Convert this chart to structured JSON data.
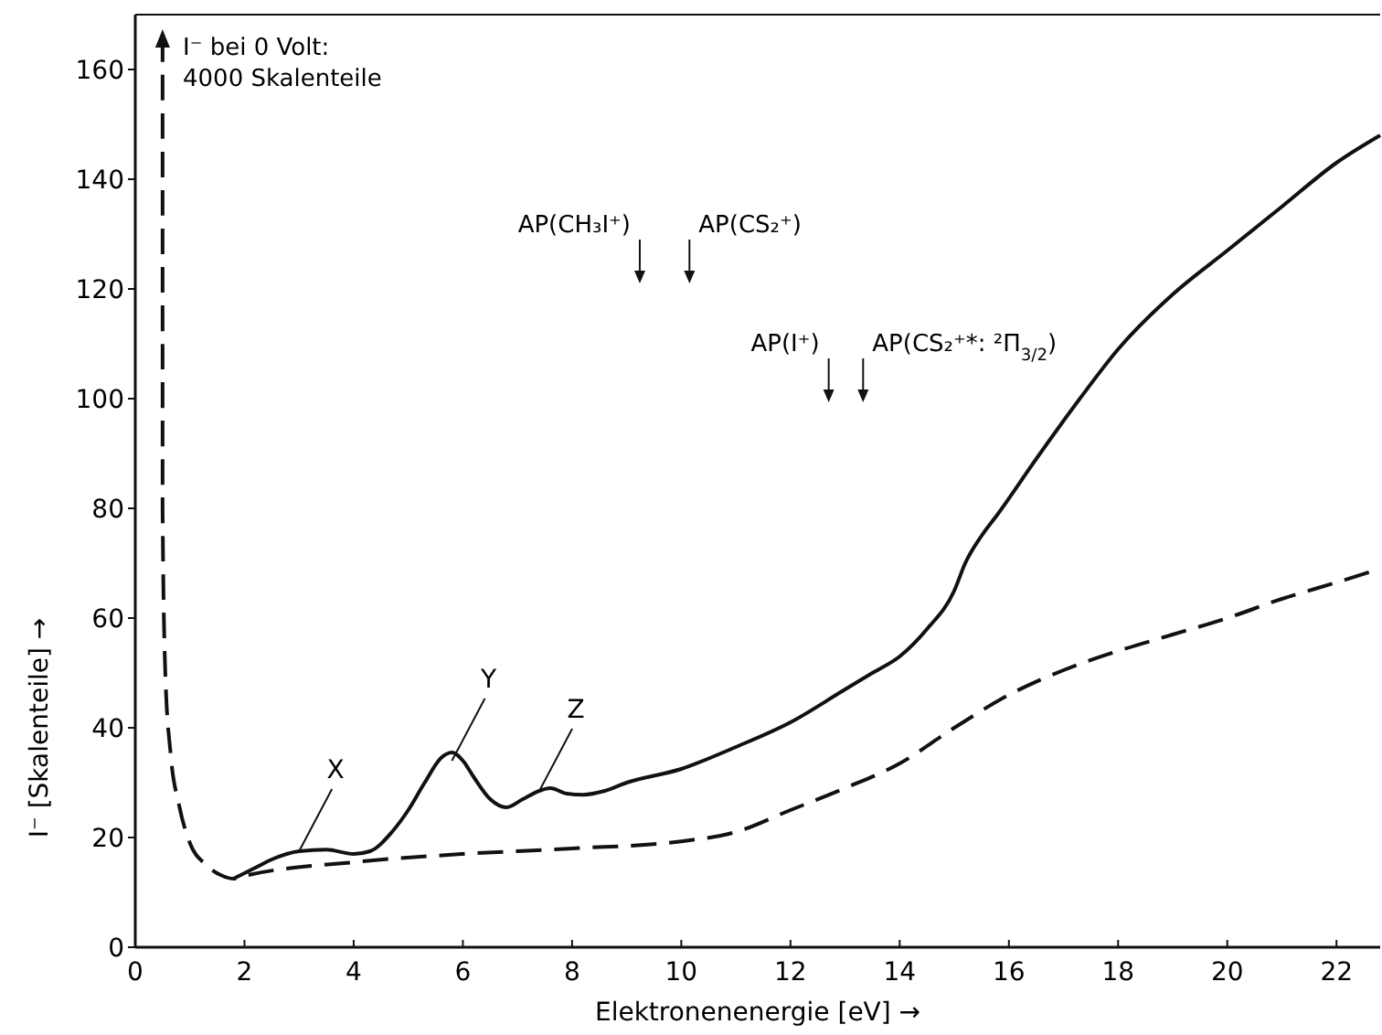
{
  "chart_data": {
    "type": "line",
    "xlabel": "Elektronenenergie [eV] →",
    "ylabel": "I⁻ [Skalenteile] →",
    "xlim": [
      0,
      22.8
    ],
    "ylim": [
      0,
      170
    ],
    "xticks": [
      0,
      2,
      4,
      6,
      8,
      10,
      12,
      14,
      16,
      18,
      20,
      22
    ],
    "yticks": [
      0,
      20,
      40,
      60,
      80,
      100,
      120,
      140,
      160
    ],
    "grid": false,
    "marker": "none",
    "ref_lines": [
      {
        "axis": "x",
        "value": 9.24,
        "label": "AP(CH₃I⁺)"
      },
      {
        "axis": "x",
        "value": 10.15,
        "label": "AP(CS₂⁺)"
      },
      {
        "axis": "x",
        "value": 12.7,
        "label": "AP(I⁺)"
      },
      {
        "axis": "x",
        "value": 13.33,
        "label": "AP(CS₂⁺*: ²Π$_{3/2}$)"
      }
    ],
    "series": [
      {
        "color": "#111111",
        "line_style": "solid",
        "x": [
          1.8,
          2.2,
          2.5,
          3,
          3.5,
          4,
          4.3,
          4.7,
          5,
          5.3,
          5.6,
          5.8,
          6,
          6.2,
          6.5,
          6.8,
          7.1,
          7.4,
          7.6,
          7.9,
          8.2,
          8.6,
          9,
          10,
          11,
          12,
          13,
          13.5,
          14,
          14.5,
          15,
          15.2,
          15.5,
          15.8,
          16.5,
          17.3,
          18,
          19,
          20,
          21,
          22,
          22.8
        ],
        "values": [
          12.5,
          14.5,
          16,
          17.5,
          17.8,
          17,
          17.5,
          21,
          25,
          30,
          34.5,
          35.5,
          34,
          31,
          27,
          25.5,
          27,
          28.5,
          29,
          28,
          27.8,
          28.5,
          30,
          32.5,
          36.5,
          41,
          47,
          50,
          53,
          58,
          65,
          70,
          75,
          79,
          89,
          100,
          109,
          119,
          127,
          135,
          143,
          148
        ]
      },
      {
        "color": "#111111",
        "line_style": "dashed",
        "x": [
          0.5,
          0.5,
          0.55,
          0.65,
          0.8,
          1.0,
          1.3,
          1.6,
          1.8,
          2,
          4,
          6,
          8,
          10,
          11,
          12,
          13,
          14,
          15,
          16,
          17,
          18,
          19,
          20,
          21,
          22,
          22.8
        ],
        "values": [
          166,
          80,
          50,
          35,
          26,
          19,
          15,
          13,
          12.5,
          13,
          15.5,
          17,
          18,
          19.3,
          21,
          25,
          29,
          33.5,
          40,
          46,
          50.5,
          54,
          57,
          60,
          63.5,
          66.5,
          69
        ]
      }
    ],
    "annotations": [
      "I⁻ bei 0 Volt:\n4000 Skalenteile",
      {
        "text": "X",
        "x": 3,
        "y": 17.5
      },
      {
        "text": "Y",
        "x": 5.8,
        "y": 34
      },
      {
        "text": "Z",
        "x": 7.4,
        "y": 28.5
      }
    ]
  }
}
